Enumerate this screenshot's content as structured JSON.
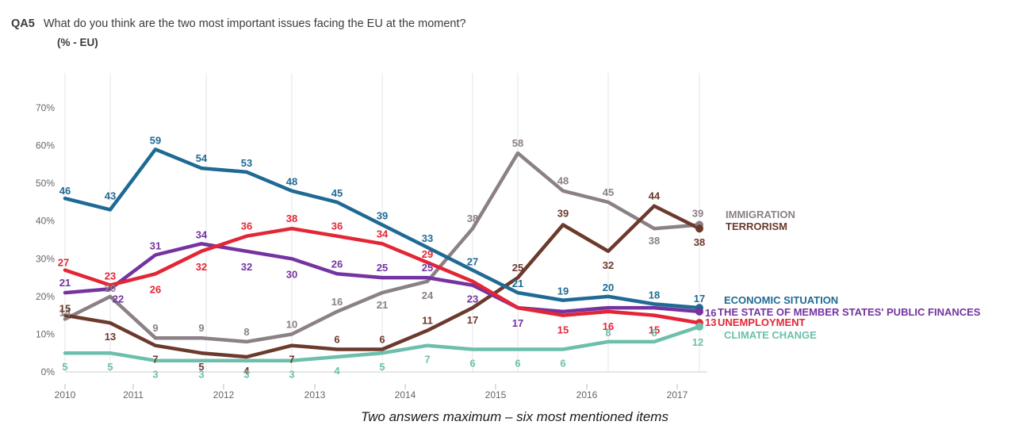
{
  "header": {
    "code": "QA5",
    "question": "What do you think are the two most important issues facing the EU at the moment?",
    "unit": "(% - EU)"
  },
  "footnote": "Two answers maximum – six most mentioned items",
  "chart_data": {
    "type": "line",
    "ylim": [
      0,
      70
    ],
    "yticks": [
      0,
      10,
      20,
      30,
      40,
      50,
      60,
      70
    ],
    "ytick_labels": [
      "0%",
      "10%",
      "20%",
      "30%",
      "40%",
      "50%",
      "60%",
      "70%"
    ],
    "x_year_labels": [
      "2010",
      "2011",
      "2012",
      "2013",
      "2014",
      "2015",
      "2016",
      "2017"
    ],
    "grid": "vertical",
    "legend_placement": "right end of lines",
    "series": [
      {
        "name": "IMMIGRATION",
        "color": "#8b8086",
        "values": [
          14,
          20,
          9,
          9,
          8,
          10,
          16,
          21,
          24,
          38,
          58,
          48,
          45,
          38,
          39
        ],
        "labels": [
          "14",
          "20",
          "9",
          "9",
          "8",
          "10",
          "16",
          "21",
          "24",
          "38",
          "58",
          "48",
          "45",
          "38",
          "39"
        ]
      },
      {
        "name": "TERRORISM",
        "color": "#6b3a2c",
        "values": [
          15,
          13,
          7,
          5,
          4,
          7,
          6,
          6,
          11,
          17,
          25,
          39,
          32,
          44,
          38
        ],
        "labels": [
          "15",
          "13",
          "7",
          "5",
          "4",
          "7",
          "6",
          "6",
          "11",
          "17",
          "25",
          "39",
          "32",
          "44",
          "38"
        ]
      },
      {
        "name": "ECONOMIC SITUATION",
        "color": "#1f6a94",
        "values": [
          46,
          43,
          59,
          54,
          53,
          48,
          45,
          39,
          33,
          27,
          21,
          19,
          20,
          18,
          17
        ],
        "labels": [
          "46",
          "43",
          "59",
          "54",
          "53",
          "48",
          "45",
          "39",
          "33",
          "27",
          "21",
          "19",
          "20",
          "18",
          "17"
        ]
      },
      {
        "name": "THE STATE OF MEMBER STATES' PUBLIC FINANCES",
        "color": "#7433a0",
        "values": [
          21,
          22,
          31,
          34,
          32,
          30,
          26,
          25,
          25,
          23,
          17,
          16,
          17,
          17,
          16
        ],
        "labels": [
          "21",
          "22",
          "31",
          "34",
          "32",
          "30",
          "26",
          "25",
          "25",
          "23",
          "17",
          "",
          "",
          "",
          "16"
        ]
      },
      {
        "name": "UNEMPLOYMENT",
        "color": "#e32636",
        "values": [
          27,
          23,
          26,
          32,
          36,
          38,
          36,
          34,
          29,
          24,
          17,
          15,
          16,
          15,
          13
        ],
        "labels": [
          "27",
          "23",
          "26",
          "32",
          "36",
          "38",
          "36",
          "34",
          "29",
          "",
          "",
          "15",
          "16",
          "15",
          "13"
        ]
      },
      {
        "name": "CLIMATE CHANGE",
        "color": "#6cbfab",
        "values": [
          5,
          5,
          3,
          3,
          3,
          3,
          4,
          5,
          7,
          6,
          6,
          6,
          8,
          8,
          12
        ],
        "labels": [
          "5",
          "5",
          "3",
          "3",
          "3",
          "3",
          "4",
          "5",
          "7",
          "6",
          "6",
          "6",
          "8",
          "8",
          "12"
        ]
      }
    ]
  }
}
